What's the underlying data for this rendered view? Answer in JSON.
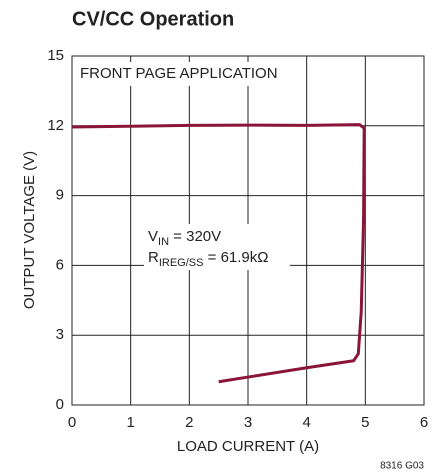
{
  "chart_data": {
    "type": "line",
    "title": "CV/CC Operation",
    "xlabel": "LOAD CURRENT (A)",
    "ylabel": "OUTPUT VOLTAGE (V)",
    "xlim": [
      0,
      6
    ],
    "xticks": [
      0,
      1,
      2,
      3,
      4,
      5,
      6
    ],
    "ylim": [
      0,
      15
    ],
    "yticks": [
      0,
      3,
      6,
      9,
      12,
      15
    ],
    "grid": true,
    "series": [
      {
        "color": "#8a1538",
        "x": [
          0,
          1,
          2,
          3,
          4,
          4.9,
          4.98,
          4.97,
          4.93,
          4.88,
          4.8,
          4,
          3,
          2.5
        ],
        "values": [
          11.95,
          11.98,
          12.02,
          12.03,
          12.02,
          12.05,
          11.9,
          8,
          4,
          2.2,
          1.9,
          1.6,
          1.2,
          1.0
        ]
      }
    ],
    "annotations": [
      {
        "text": "FRONT PAGE APPLICATION"
      },
      {
        "text": "V",
        "sub": "IN",
        "rest": " = 320V"
      },
      {
        "text": "R",
        "sub": "IREG/SS",
        "rest": " = 61.9kΩ"
      }
    ],
    "figure_id": "8316 G03"
  }
}
